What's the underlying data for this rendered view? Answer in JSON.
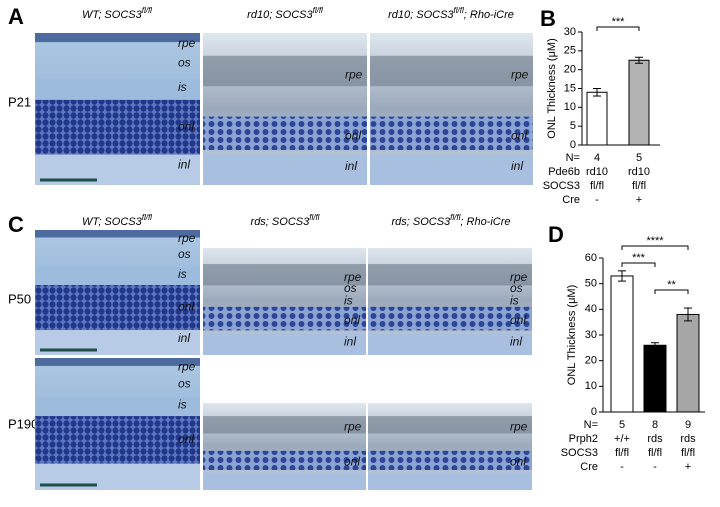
{
  "panels": [
    {
      "label": "A",
      "columns": [
        {
          "text": "WT; SOCS3",
          "sup": "fl/fl"
        },
        {
          "text": "rd10; SOCS3",
          "sup": "fl/fl"
        },
        {
          "text": "rd10; SOCS3",
          "sup": "fl/fl",
          "after": "; Rho-iCre"
        }
      ],
      "rows": [
        {
          "label": "P21",
          "images": [
            {
              "layers": [
                "rpe",
                "os",
                "is",
                "onl",
                "inl"
              ]
            },
            {
              "layers": [
                "rpe",
                "onl",
                "inl"
              ]
            },
            {
              "layers": [
                "rpe",
                "onl",
                "inl"
              ]
            }
          ]
        }
      ]
    },
    {
      "label": "C",
      "columns": [
        {
          "text": "WT; SOCS3",
          "sup": "fl/fl"
        },
        {
          "text": "rds; SOCS3",
          "sup": "fl/fl"
        },
        {
          "text": "rds; SOCS3",
          "sup": "fl/fl",
          "after": "; Rho-iCre"
        }
      ],
      "rows": [
        {
          "label": "P50",
          "images": [
            {
              "layers": [
                "rpe",
                "os",
                "is",
                "onl",
                "inl"
              ]
            },
            {
              "layers": [
                "rpe",
                "os",
                "is",
                "onl",
                "inl"
              ]
            },
            {
              "layers": [
                "rpe",
                "os",
                "is",
                "onl",
                "inl"
              ]
            }
          ]
        },
        {
          "label": "P190",
          "images": [
            {
              "layers": [
                "rpe",
                "os",
                "is",
                "onl"
              ]
            },
            {
              "layers": [
                "rpe",
                "onl"
              ]
            },
            {
              "layers": [
                "rpe",
                "onl"
              ]
            }
          ]
        }
      ]
    }
  ],
  "chart_data": [
    {
      "type": "bar",
      "panel_label": "B",
      "ylabel": "ONL Thickness (μM)",
      "values": [
        14,
        22.5
      ],
      "errors": [
        1,
        0.8
      ],
      "colors": [
        "#ffffff",
        "#b3b3b3"
      ],
      "ylim": [
        0,
        30
      ],
      "yticks": [
        0,
        5,
        10,
        15,
        20,
        25,
        30
      ],
      "significance": [
        "***"
      ],
      "table": [
        [
          "N=",
          "4",
          "5"
        ],
        [
          "Pde6b",
          "rd10",
          "rd10"
        ],
        [
          "SOCS3",
          "fl/fl",
          "fl/fl"
        ],
        [
          "Cre",
          "-",
          "+"
        ]
      ]
    },
    {
      "type": "bar",
      "panel_label": "D",
      "ylabel": "ONL Thickness (μM)",
      "values": [
        53,
        26,
        38
      ],
      "errors": [
        2,
        1,
        2.5
      ],
      "colors": [
        "#ffffff",
        "#000000",
        "#a6a6a6"
      ],
      "ylim": [
        0,
        60
      ],
      "yticks": [
        0,
        10,
        20,
        30,
        40,
        50,
        60
      ],
      "significance": [
        "****",
        "***",
        "**"
      ],
      "table": [
        [
          "N=",
          "5",
          "8",
          "9"
        ],
        [
          "Prph2",
          "+/+",
          "rds",
          "rds"
        ],
        [
          "SOCS3",
          "fl/fl",
          "fl/fl",
          "fl/fl"
        ],
        [
          "Cre",
          "-",
          "-",
          "+"
        ]
      ]
    }
  ]
}
